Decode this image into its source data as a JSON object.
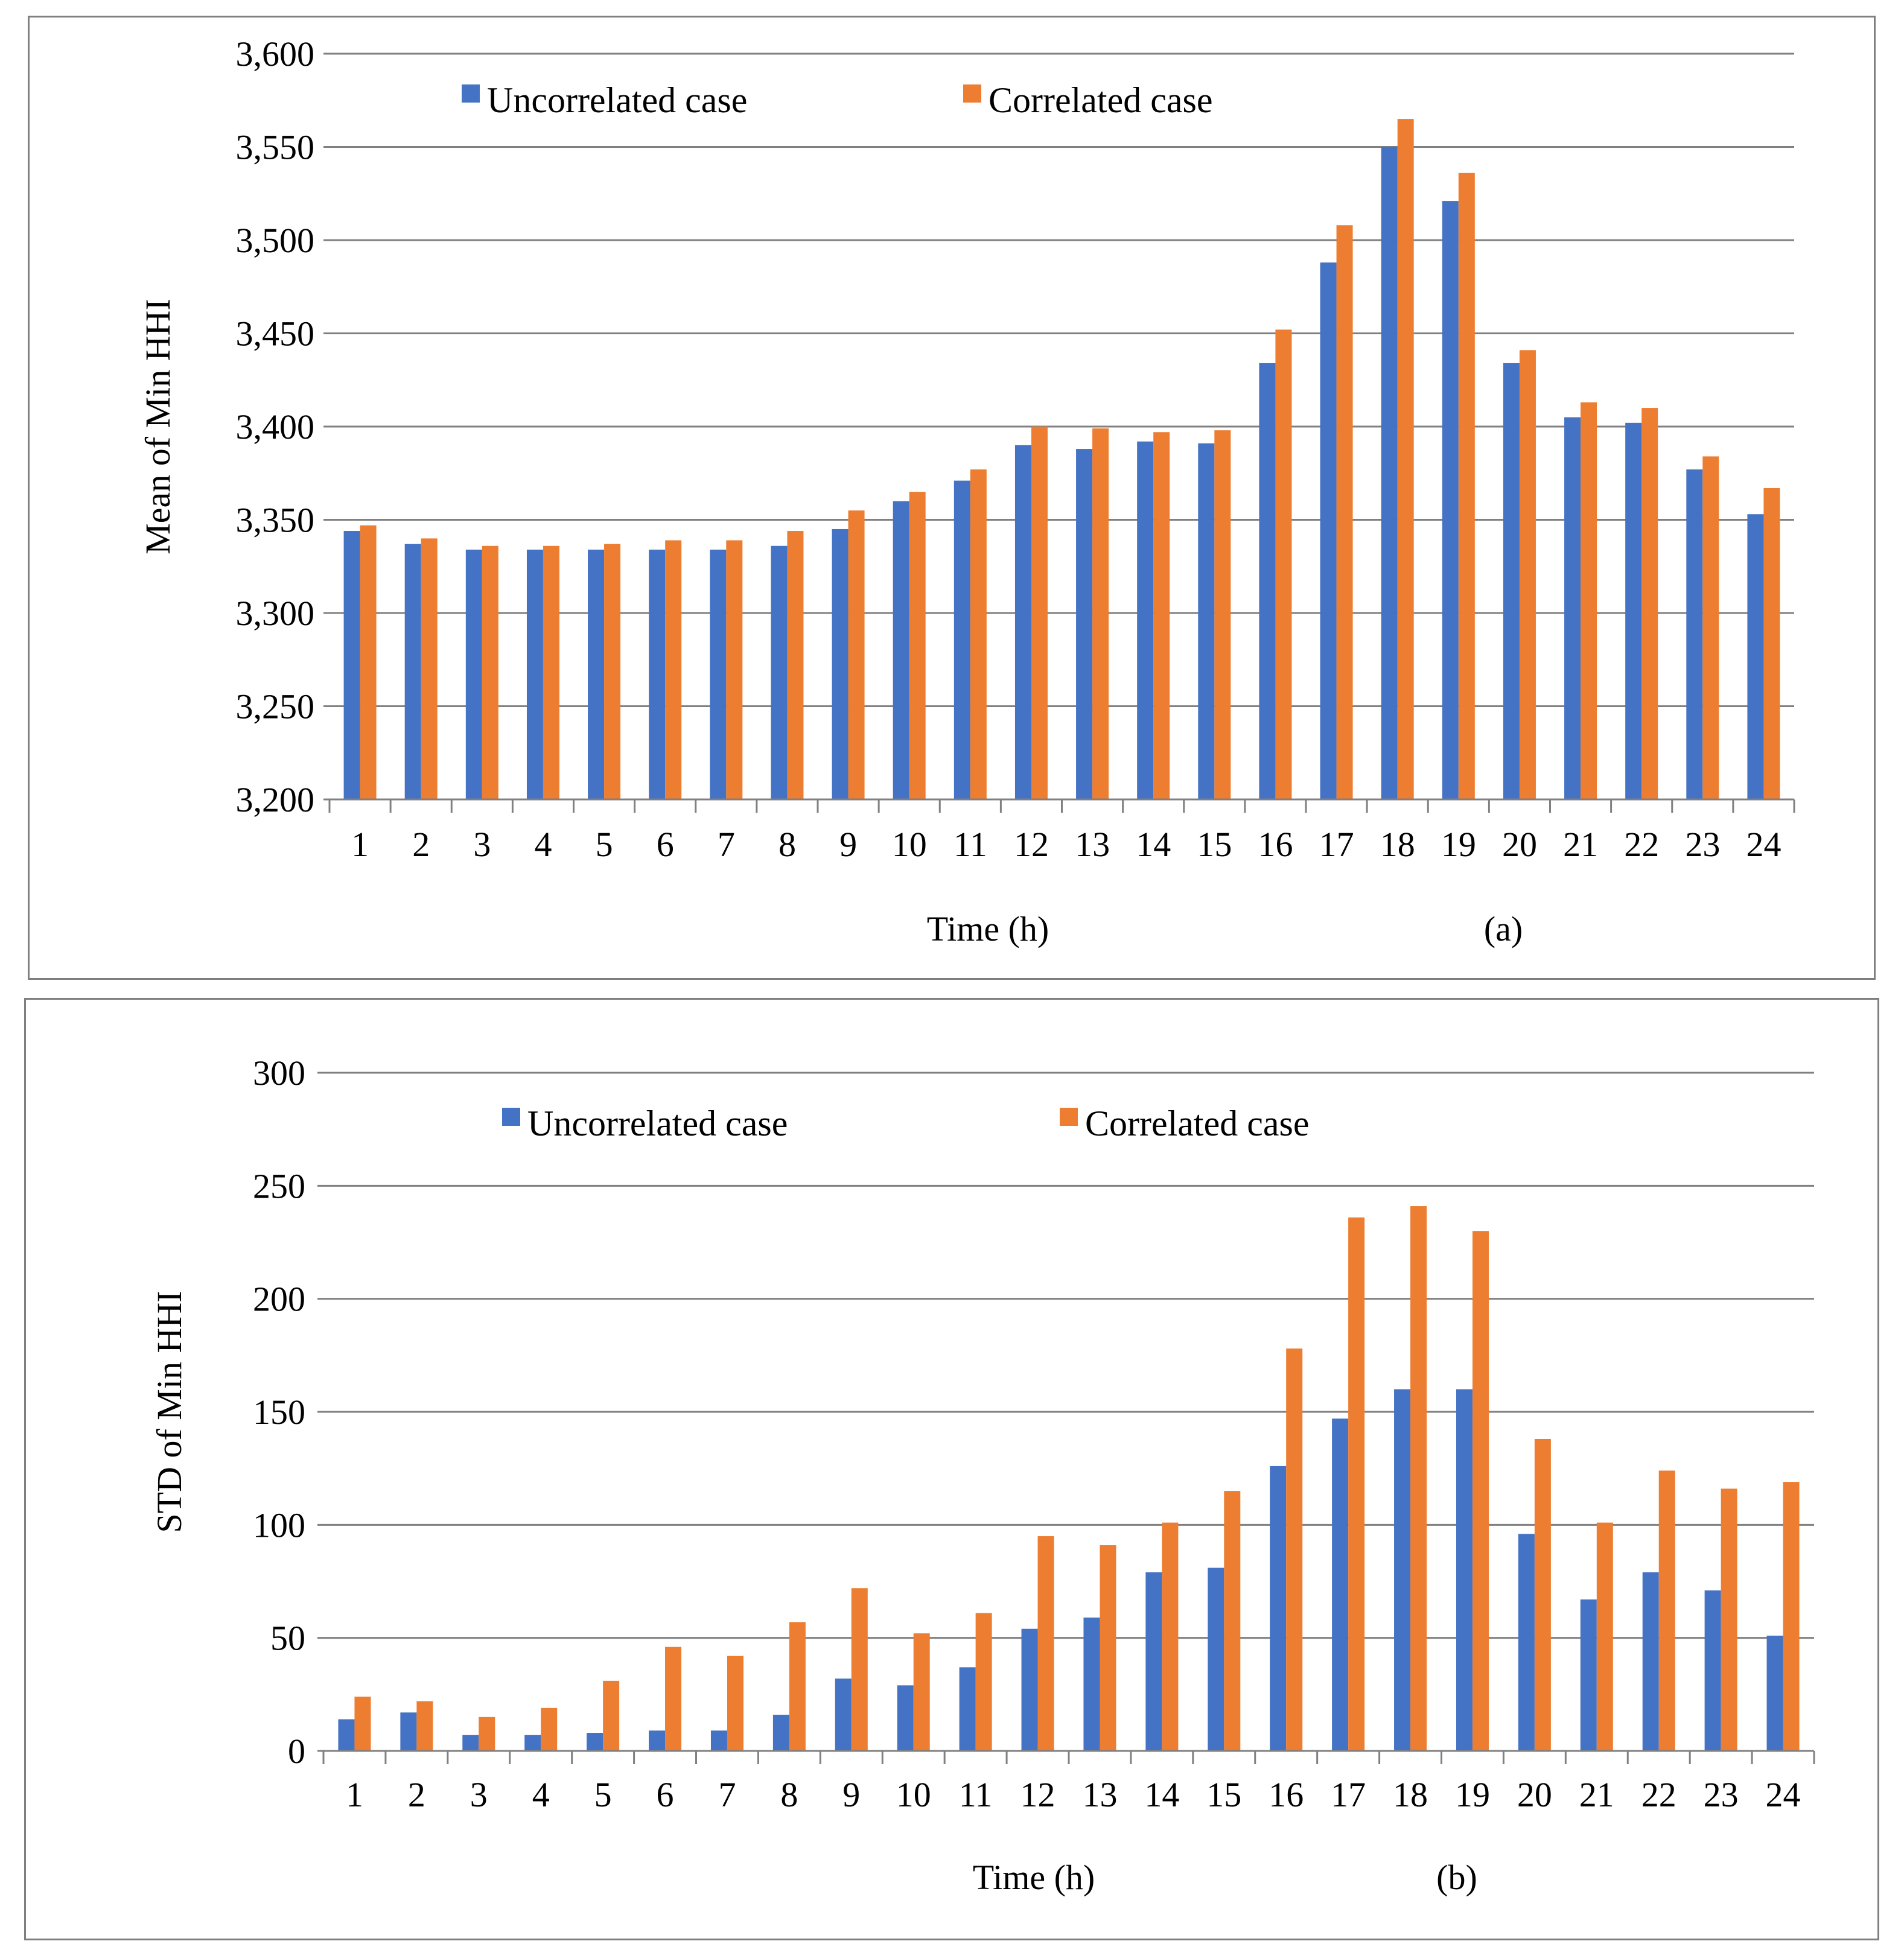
{
  "chart_data": [
    {
      "type": "bar",
      "panel_label": "(a)",
      "title": "",
      "xlabel": "Time (h)",
      "ylabel": "Mean of Min HHI",
      "ylim": [
        3200,
        3600
      ],
      "y_ticks": [
        3200,
        3250,
        3300,
        3350,
        3400,
        3450,
        3500,
        3550,
        3600
      ],
      "y_tick_labels": [
        "3,200",
        "3,250",
        "3,300",
        "3,350",
        "3,400",
        "3,450",
        "3,500",
        "3,550",
        "3,600"
      ],
      "categories": [
        "1",
        "2",
        "3",
        "4",
        "5",
        "6",
        "7",
        "8",
        "9",
        "10",
        "11",
        "12",
        "13",
        "14",
        "15",
        "16",
        "17",
        "18",
        "19",
        "20",
        "21",
        "22",
        "23",
        "24"
      ],
      "legend_position": "top-left",
      "series": [
        {
          "name": "Uncorrelated case",
          "color": "#4472C4",
          "values": [
            3344,
            3337,
            3334,
            3334,
            3334,
            3334,
            3334,
            3336,
            3345,
            3360,
            3371,
            3390,
            3388,
            3392,
            3391,
            3434,
            3488,
            3550,
            3521,
            3434,
            3405,
            3402,
            3377,
            3353
          ]
        },
        {
          "name": "Correlated case",
          "color": "#ED7D31",
          "values": [
            3347,
            3340,
            3336,
            3336,
            3337,
            3339,
            3339,
            3344,
            3355,
            3365,
            3377,
            3400,
            3399,
            3397,
            3398,
            3452,
            3508,
            3565,
            3536,
            3441,
            3413,
            3410,
            3384,
            3367
          ]
        }
      ]
    },
    {
      "type": "bar",
      "panel_label": "(b)",
      "title": "",
      "xlabel": "Time (h)",
      "ylabel": "STD of Min HHI",
      "ylim": [
        0,
        300
      ],
      "y_ticks": [
        0,
        50,
        100,
        150,
        200,
        250,
        300
      ],
      "y_tick_labels": [
        "0",
        "50",
        "100",
        "150",
        "200",
        "250",
        "300"
      ],
      "categories": [
        "1",
        "2",
        "3",
        "4",
        "5",
        "6",
        "7",
        "8",
        "9",
        "10",
        "11",
        "12",
        "13",
        "14",
        "15",
        "16",
        "17",
        "18",
        "19",
        "20",
        "21",
        "22",
        "23",
        "24"
      ],
      "legend_position": "top-left",
      "series": [
        {
          "name": "Uncorrelated case",
          "color": "#4472C4",
          "values": [
            14,
            17,
            7,
            7,
            8,
            9,
            9,
            16,
            32,
            29,
            37,
            54,
            59,
            79,
            81,
            126,
            147,
            160,
            160,
            96,
            67,
            79,
            71,
            51
          ]
        },
        {
          "name": "Correlated case",
          "color": "#ED7D31",
          "values": [
            24,
            22,
            15,
            19,
            31,
            46,
            42,
            57,
            72,
            52,
            61,
            95,
            91,
            101,
            115,
            178,
            236,
            241,
            230,
            138,
            101,
            124,
            116,
            119
          ]
        }
      ]
    }
  ]
}
